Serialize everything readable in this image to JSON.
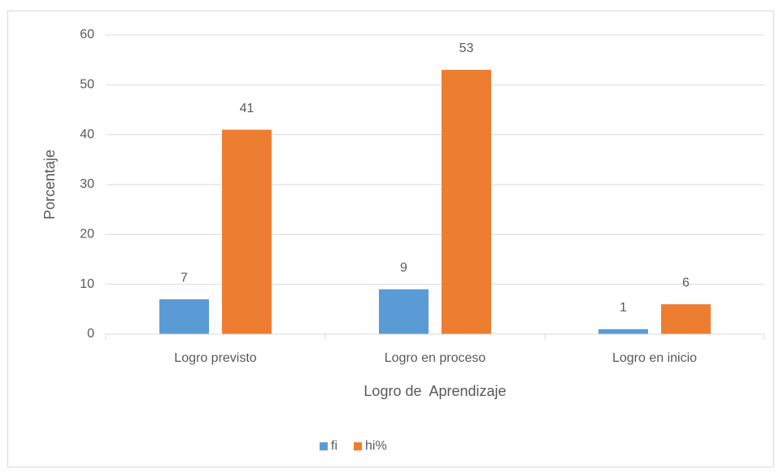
{
  "chart_data": {
    "type": "bar",
    "categories": [
      "Logro previsto",
      "Logro en proceso",
      "Logro en inicio"
    ],
    "series": [
      {
        "name": "fi",
        "color": "#5b9bd5",
        "values": [
          7,
          9,
          1
        ]
      },
      {
        "name": "hi%",
        "color": "#ed7d31",
        "values": [
          41,
          53,
          6
        ]
      }
    ],
    "ylim": [
      0,
      60
    ],
    "yticks": [
      0,
      10,
      20,
      30,
      40,
      50,
      60
    ],
    "xlabel": "Logro de  Aprendizaje",
    "ylabel": "Porcentaje",
    "grid": true,
    "legend": "bottom",
    "data_labels": true
  }
}
